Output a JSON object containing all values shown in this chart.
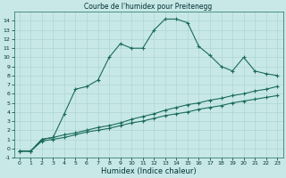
{
  "title": "Courbe de l'humidex pour Preitenegg",
  "xlabel": "Humidex (Indice chaleur)",
  "bg_color": "#c8e8e8",
  "grid_color": "#a8d0d0",
  "line_color": "#1a6b5a",
  "xlim": [
    -0.5,
    23.5
  ],
  "ylim": [
    -1,
    15
  ],
  "xticks": [
    0,
    1,
    2,
    3,
    4,
    5,
    6,
    7,
    8,
    9,
    10,
    11,
    12,
    13,
    14,
    15,
    16,
    17,
    18,
    19,
    20,
    21,
    22,
    23
  ],
  "yticks": [
    -1,
    0,
    1,
    2,
    3,
    4,
    5,
    6,
    7,
    8,
    9,
    10,
    11,
    12,
    13,
    14
  ],
  "series1_x": [
    0,
    1,
    2,
    3,
    4,
    5,
    6,
    7,
    8,
    9,
    10,
    11,
    12,
    13,
    14,
    15,
    16,
    17,
    18,
    19,
    20,
    21,
    22,
    23
  ],
  "series1_y": [
    -0.3,
    -0.3,
    1.0,
    1.2,
    3.8,
    6.5,
    6.8,
    7.5,
    10.0,
    11.5,
    11.0,
    11.0,
    13.0,
    14.2,
    14.2,
    13.8,
    11.2,
    10.2,
    9.0,
    8.5,
    10.0,
    8.5,
    8.2,
    8.0
  ],
  "series2_x": [
    0,
    1,
    2,
    3,
    4,
    5,
    6,
    7,
    8,
    9,
    10,
    11,
    12,
    13,
    14,
    15,
    16,
    17,
    18,
    19,
    20,
    21,
    22,
    23
  ],
  "series2_y": [
    -0.3,
    -0.3,
    1.0,
    1.2,
    1.5,
    1.7,
    2.0,
    2.3,
    2.5,
    2.8,
    3.2,
    3.5,
    3.8,
    4.2,
    4.5,
    4.8,
    5.0,
    5.3,
    5.5,
    5.8,
    6.0,
    6.3,
    6.5,
    6.8
  ],
  "series3_x": [
    0,
    1,
    2,
    3,
    4,
    5,
    6,
    7,
    8,
    9,
    10,
    11,
    12,
    13,
    14,
    15,
    16,
    17,
    18,
    19,
    20,
    21,
    22,
    23
  ],
  "series3_y": [
    -0.3,
    -0.3,
    0.8,
    1.0,
    1.2,
    1.5,
    1.8,
    2.0,
    2.2,
    2.5,
    2.8,
    3.0,
    3.3,
    3.6,
    3.8,
    4.0,
    4.3,
    4.5,
    4.7,
    5.0,
    5.2,
    5.4,
    5.6,
    5.8
  ],
  "title_fontsize": 5.5,
  "xlabel_fontsize": 6,
  "tick_fontsize": 4.5
}
